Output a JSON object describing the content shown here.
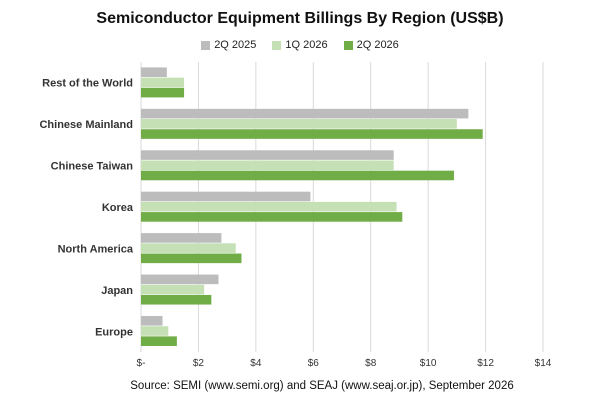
{
  "chart_data": {
    "type": "bar",
    "orientation": "horizontal",
    "title": "Semiconductor Equipment Billings By Region (US$B)",
    "categories": [
      "Rest of the World",
      "Chinese Mainland",
      "Chinese Taiwan",
      "Korea",
      "North America",
      "Japan",
      "Europe"
    ],
    "series": [
      {
        "name": "2Q 2025",
        "color": "#bcbcbc",
        "values": [
          0.9,
          11.4,
          8.8,
          5.9,
          2.8,
          2.7,
          0.75
        ]
      },
      {
        "name": "1Q 2026",
        "color": "#c5e0b4",
        "values": [
          1.5,
          11.0,
          8.8,
          8.9,
          3.3,
          2.2,
          0.95
        ]
      },
      {
        "name": "2Q 2026",
        "color": "#70ad47",
        "values": [
          1.5,
          11.9,
          10.9,
          9.1,
          3.5,
          2.45,
          1.25
        ]
      }
    ],
    "xlim": [
      0,
      14
    ],
    "xticks": [
      0,
      2,
      4,
      6,
      8,
      10,
      12,
      14
    ],
    "xtick_labels": [
      "$-",
      "$2",
      "$4",
      "$6",
      "$8",
      "$10",
      "$12",
      "$14"
    ],
    "grid": true,
    "legend_position": "top"
  },
  "source_note": "Source: SEMI (www.semi.org) and SEAJ (www.seaj.or.jp), September 2026"
}
